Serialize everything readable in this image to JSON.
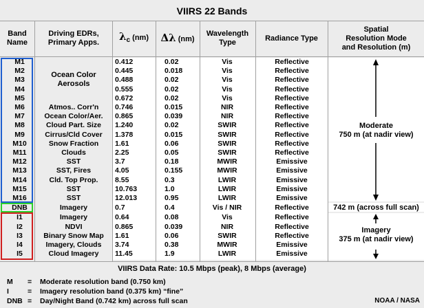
{
  "title": "VIIRS 22 Bands",
  "headers": {
    "band": [
      "Band",
      "Name"
    ],
    "edr": [
      "Driving EDRs,",
      "Primary Apps."
    ],
    "lambda_c": "(nm)",
    "dlambda": "(nm)",
    "wavelength": [
      "Wavelength",
      "Type"
    ],
    "radiance": "Radiance Type",
    "resolution": [
      "Spatial",
      "Resolution Mode",
      "and Resolution (m)"
    ]
  },
  "moderate_group_label": [
    "Ocean Color",
    "Aerosols"
  ],
  "bands": [
    {
      "name": "M1",
      "edr": "",
      "lambda": "0.412",
      "dlambda": "0.02",
      "type": "Vis",
      "radiance": "Reflective"
    },
    {
      "name": "M2",
      "edr": "",
      "lambda": "0.445",
      "dlambda": "0.018",
      "type": "Vis",
      "radiance": "Reflective"
    },
    {
      "name": "M3",
      "edr": "",
      "lambda": "0.488",
      "dlambda": "0.02",
      "type": "Vis",
      "radiance": "Reflective"
    },
    {
      "name": "M4",
      "edr": "",
      "lambda": "0.555",
      "dlambda": "0.02",
      "type": "Vis",
      "radiance": "Reflective"
    },
    {
      "name": "M5",
      "edr": "",
      "lambda": "0.672",
      "dlambda": "0.02",
      "type": "Vis",
      "radiance": "Reflective"
    },
    {
      "name": "M6",
      "edr": "Atmos.. Corr'n",
      "lambda": "0.746",
      "dlambda": "0.015",
      "type": "NIR",
      "radiance": "Reflective"
    },
    {
      "name": "M7",
      "edr": "Ocean Color/Aer.",
      "lambda": "0.865",
      "dlambda": "0.039",
      "type": "NIR",
      "radiance": "Reflective"
    },
    {
      "name": "M8",
      "edr": "Cloud Part. Size",
      "lambda": "1.240",
      "dlambda": "0.02",
      "type": "SWIR",
      "radiance": "Reflective"
    },
    {
      "name": "M9",
      "edr": "Cirrus/Cld Cover",
      "lambda": "1.378",
      "dlambda": "0.015",
      "type": "SWIR",
      "radiance": "Reflective"
    },
    {
      "name": "M10",
      "edr": "Snow Fraction",
      "lambda": "1.61",
      "dlambda": "0.06",
      "type": "SWIR",
      "radiance": "Reflective"
    },
    {
      "name": "M11",
      "edr": "Clouds",
      "lambda": "2.25",
      "dlambda": "0.05",
      "type": "SWIR",
      "radiance": "Reflective"
    },
    {
      "name": "M12",
      "edr": "SST",
      "lambda": "3.7",
      "dlambda": "0.18",
      "type": "MWIR",
      "radiance": "Emissive"
    },
    {
      "name": "M13",
      "edr": "SST, Fires",
      "lambda": "4.05",
      "dlambda": "0.155",
      "type": "MWIR",
      "radiance": "Emissive"
    },
    {
      "name": "M14",
      "edr": "Cld. Top Prop.",
      "lambda": "8.55",
      "dlambda": "0.3",
      "type": "LWIR",
      "radiance": "Emissive"
    },
    {
      "name": "M15",
      "edr": "SST",
      "lambda": "10.763",
      "dlambda": "1.0",
      "type": "LWIR",
      "radiance": "Emissive"
    },
    {
      "name": "M16",
      "edr": "SST",
      "lambda": "12.013",
      "dlambda": "0.95",
      "type": "LWIR",
      "radiance": "Emissive"
    },
    {
      "name": "DNB",
      "edr": "Imagery",
      "lambda": "0.7",
      "dlambda": "0.4",
      "type": "Vis / NIR",
      "radiance": "Reflective"
    },
    {
      "name": "I1",
      "edr": "Imagery",
      "lambda": "0.64",
      "dlambda": "0.08",
      "type": "Vis",
      "radiance": "Reflective"
    },
    {
      "name": "I2",
      "edr": "NDVI",
      "lambda": "0.865",
      "dlambda": "0.039",
      "type": "NIR",
      "radiance": "Reflective"
    },
    {
      "name": "I3",
      "edr": "Binary Snow Map",
      "lambda": "1.61",
      "dlambda": "0.06",
      "type": "SWIR",
      "radiance": "Reflective"
    },
    {
      "name": "I4",
      "edr": "Imagery, Clouds",
      "lambda": "3.74",
      "dlambda": "0.38",
      "type": "MWIR",
      "radiance": "Emissive"
    },
    {
      "name": "I5",
      "edr": "Cloud Imagery",
      "lambda": "11.45",
      "dlambda": "1.9",
      "type": "LWIR",
      "radiance": "Emissive"
    }
  ],
  "resolution": {
    "moderate": [
      "Moderate",
      "750 m (at nadir view)"
    ],
    "dnb": "742 m (across full scan)",
    "imagery": [
      "Imagery",
      "375 m (at nadir view)"
    ]
  },
  "data_rate": "VIIRS Data Rate:  10.5 Mbps (peak), 8 Mbps (average)",
  "legend": [
    {
      "key": "M",
      "eq": "=",
      "text": "Moderate resolution band (0.750 km)"
    },
    {
      "key": "I",
      "eq": "=",
      "text": "Imagery resolution band (0.375 km) “fine”"
    },
    {
      "key": "DNB",
      "eq": "=",
      "text": "Day/Night Band (0.742 km) across full scan"
    }
  ],
  "credit": "NOAA / NASA",
  "colors": {
    "moderate_box": "#1f5fd0",
    "dnb_box": "#2bd02b",
    "imagery_box": "#d01f1f",
    "background": "#ececec"
  }
}
